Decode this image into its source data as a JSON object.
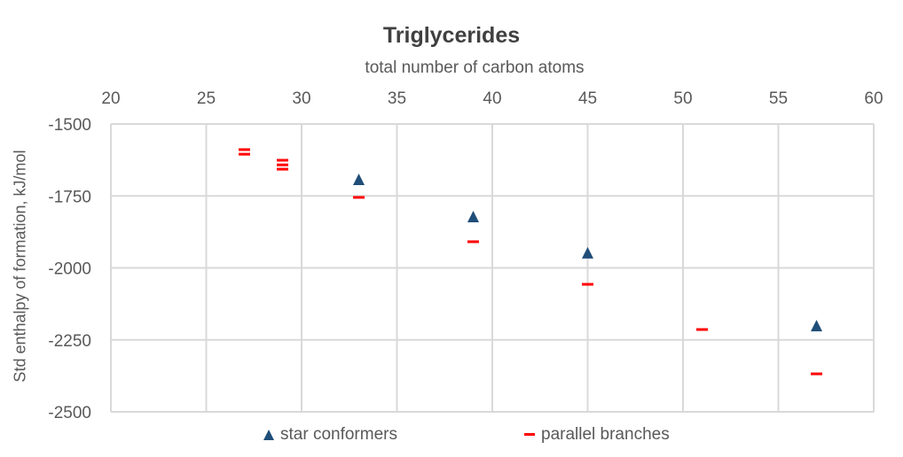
{
  "chart_data": {
    "type": "scatter",
    "title": "Triglycerides",
    "xlabel": "total number of carbon atoms",
    "ylabel": "Std enthalpy of formation, kJ/mol",
    "xlim": [
      20,
      60
    ],
    "ylim": [
      -2500,
      -1500
    ],
    "x_ticks": [
      20,
      25,
      30,
      35,
      40,
      45,
      50,
      55,
      60
    ],
    "y_ticks": [
      -1500,
      -1750,
      -2000,
      -2250,
      -2500
    ],
    "x_axis_position": "top",
    "grid": true,
    "legend_position": "bottom",
    "series": [
      {
        "name": "star conformers",
        "marker": "triangle",
        "color": "#1F4E79",
        "points": [
          [
            33,
            -1694
          ],
          [
            39,
            -1823
          ],
          [
            45,
            -1949
          ],
          [
            57,
            -2202
          ]
        ]
      },
      {
        "name": "parallel branches",
        "marker": "dash",
        "color": "#FF0000",
        "points": [
          [
            27,
            -1589
          ],
          [
            27,
            -1605
          ],
          [
            29,
            -1626
          ],
          [
            29,
            -1642
          ],
          [
            29,
            -1657
          ],
          [
            33,
            -1755
          ],
          [
            39,
            -1909
          ],
          [
            45,
            -2057
          ],
          [
            51,
            -2214
          ],
          [
            57,
            -2368
          ]
        ]
      }
    ]
  },
  "legend": {
    "star_label": "star conformers",
    "parallel_label": "parallel branches"
  }
}
